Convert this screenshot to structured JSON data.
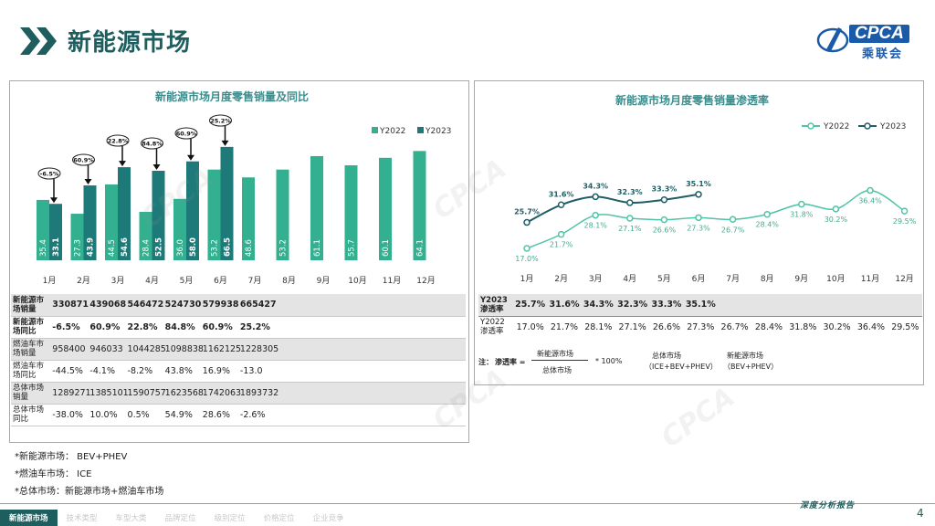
{
  "page": {
    "title": "新能源市场",
    "logo_text": "CPCA",
    "logo_cn": "乘联会",
    "footer_tag": "深度分析报告",
    "page_number": "4",
    "nav": [
      "新能源市场",
      "技术类型",
      "车型大类",
      "品牌定位",
      "级别定位",
      "价格定位",
      "企业竞争"
    ],
    "notes": [
      "*新能源市场： BEV+PHEV",
      "*燃油车市场： ICE",
      "*总体市场：新能源市场+燃油车市场"
    ],
    "watermark": "CPCA"
  },
  "chart_data": [
    {
      "type": "bar",
      "title": "新能源市场月度零售销量及同比",
      "categories": [
        "1月",
        "2月",
        "3月",
        "4月",
        "5月",
        "6月",
        "7月",
        "8月",
        "9月",
        "10月",
        "11月",
        "12月"
      ],
      "series": [
        {
          "name": "Y2022",
          "color": "#33b08f",
          "values": [
            35.4,
            27.3,
            44.5,
            28.4,
            36.0,
            53.2,
            48.6,
            53.2,
            61.1,
            55.7,
            60.1,
            64.1
          ]
        },
        {
          "name": "Y2023",
          "color": "#1e7a78",
          "values": [
            33.1,
            43.9,
            54.6,
            52.5,
            58.0,
            66.5,
            null,
            null,
            null,
            null,
            null,
            null
          ]
        }
      ],
      "yoy_labels": [
        "-6.5%",
        "60.9%",
        "22.8%",
        "84.8%",
        "60.9%",
        "25.2%"
      ],
      "ylim": [
        0,
        75
      ],
      "legend_position": "top-right"
    },
    {
      "type": "line",
      "title": "新能源市场月度零售销量渗透率",
      "categories": [
        "1月",
        "2月",
        "3月",
        "4月",
        "5月",
        "6月",
        "7月",
        "8月",
        "9月",
        "10月",
        "11月",
        "12月"
      ],
      "series": [
        {
          "name": "Y2022",
          "color": "#4fc4a6",
          "values": [
            17.0,
            21.7,
            28.1,
            27.1,
            26.6,
            27.3,
            26.7,
            28.4,
            31.8,
            30.2,
            36.4,
            29.5
          ]
        },
        {
          "name": "Y2023",
          "color": "#1f5e66",
          "values": [
            25.7,
            31.6,
            34.3,
            32.3,
            33.3,
            35.1,
            null,
            null,
            null,
            null,
            null,
            null
          ]
        }
      ],
      "ylim": [
        10,
        40
      ],
      "legend_position": "top-right"
    }
  ],
  "left_table": {
    "rows": [
      {
        "label": "新能源市场销量",
        "bold": true,
        "shade": true,
        "values": [
          "330871",
          "439068",
          "546472",
          "524730",
          "579938",
          "665427"
        ]
      },
      {
        "label": "新能源市场同比",
        "bold": true,
        "shade": false,
        "values": [
          "-6.5%",
          "60.9%",
          "22.8%",
          "84.8%",
          "60.9%",
          "25.2%"
        ]
      },
      {
        "label": "燃油车市场销量",
        "bold": false,
        "shade": true,
        "values": [
          "958400",
          "946033",
          "1044285",
          "1098838",
          "1162125",
          "1228305"
        ]
      },
      {
        "label": "燃油车市场同比",
        "bold": false,
        "shade": false,
        "values": [
          "-44.5%",
          "-4.1%",
          "-8.2%",
          "43.8%",
          "16.9%",
          "-13.0"
        ]
      },
      {
        "label": "总体市场销量",
        "bold": false,
        "shade": true,
        "values": [
          "1289271",
          "1385101",
          "1590757",
          "1623568",
          "1742063",
          "1893732"
        ]
      },
      {
        "label": "总体市场同比",
        "bold": false,
        "shade": false,
        "values": [
          "-38.0%",
          "10.0%",
          "0.5%",
          "54.9%",
          "28.6%",
          "-2.6%"
        ]
      }
    ]
  },
  "right_table": {
    "rows": [
      {
        "label": "Y2023渗透率",
        "values": [
          "25.7%",
          "31.6%",
          "34.3%",
          "32.3%",
          "33.3%",
          "35.1%",
          "",
          "",
          "",
          "",
          "",
          ""
        ]
      },
      {
        "label": "Y2022渗透率",
        "values": [
          "17.0%",
          "21.7%",
          "28.1%",
          "27.1%",
          "26.6%",
          "27.3%",
          "26.7%",
          "28.4%",
          "31.8%",
          "30.2%",
          "36.4%",
          "29.5%"
        ]
      }
    ]
  },
  "formula": {
    "note": "注：",
    "label": "渗透率 =",
    "numerator": "新能源市场",
    "denominator": "总体市场",
    "multiplier": "* 100%",
    "def1_title": "总体市场",
    "def1_body": "（ICE+BEV+PHEV）",
    "def2_title": "新能源市场",
    "def2_body": "（BEV+PHEV）"
  }
}
